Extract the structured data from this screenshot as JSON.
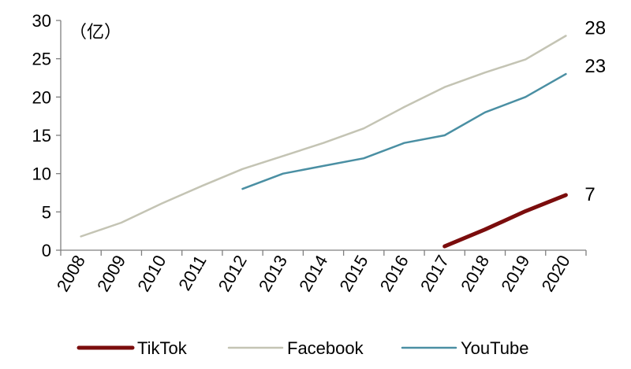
{
  "chart_data": {
    "type": "line",
    "categories": [
      "2008",
      "2009",
      "2010",
      "2011",
      "2012",
      "2013",
      "2014",
      "2015",
      "2016",
      "2017",
      "2018",
      "2019",
      "2020"
    ],
    "unit_label": "（亿）",
    "ylim": [
      0,
      30
    ],
    "yticks": [
      "0",
      "5",
      "10",
      "15",
      "20",
      "25",
      "30"
    ],
    "grid": false,
    "legend_position": "bottom",
    "series": [
      {
        "name": "TikTok",
        "color": "#7b0d0d",
        "values": [
          null,
          null,
          null,
          null,
          null,
          null,
          null,
          null,
          null,
          0.5,
          2.7,
          5.1,
          7.2
        ],
        "end_label": "7"
      },
      {
        "name": "Facebook",
        "color": "#c4c4b4",
        "values": [
          1.8,
          3.6,
          6.1,
          8.4,
          10.6,
          12.3,
          14.0,
          15.9,
          18.7,
          21.3,
          23.2,
          24.9,
          28.0
        ],
        "end_label": "28"
      },
      {
        "name": "YouTube",
        "color": "#4a8fa3",
        "values": [
          null,
          null,
          null,
          null,
          8.0,
          10.0,
          11.0,
          12.0,
          14.0,
          15.0,
          18.0,
          20.0,
          23.0
        ],
        "end_label": "23"
      }
    ]
  }
}
